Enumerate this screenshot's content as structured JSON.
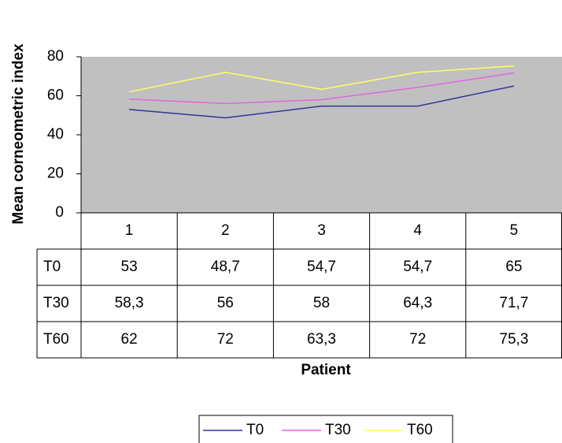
{
  "chart_data": {
    "type": "line",
    "y_label": "Mean corneometric index",
    "x_label": "Patient",
    "categories": [
      "1",
      "2",
      "3",
      "4",
      "5"
    ],
    "series": [
      {
        "name": "T0",
        "color": "#333399",
        "values": [
          53,
          48.7,
          54.7,
          54.7,
          65
        ],
        "value_labels": [
          "53",
          "48,7",
          "54,7",
          "54,7",
          "65"
        ]
      },
      {
        "name": "T30",
        "color": "#e066e0",
        "values": [
          58.3,
          56,
          58,
          64.3,
          71.7
        ],
        "value_labels": [
          "58,3",
          "56",
          "58",
          "64,3",
          "71,7"
        ]
      },
      {
        "name": "T60",
        "color": "#ffff66",
        "values": [
          62,
          72,
          63.3,
          72,
          75.3
        ],
        "value_labels": [
          "62",
          "72",
          "63,3",
          "72",
          "75,3"
        ]
      }
    ],
    "ylim": [
      0,
      80
    ],
    "yticks": [
      0,
      20,
      40,
      60,
      80
    ],
    "plot_background": "#c0c0c0"
  }
}
